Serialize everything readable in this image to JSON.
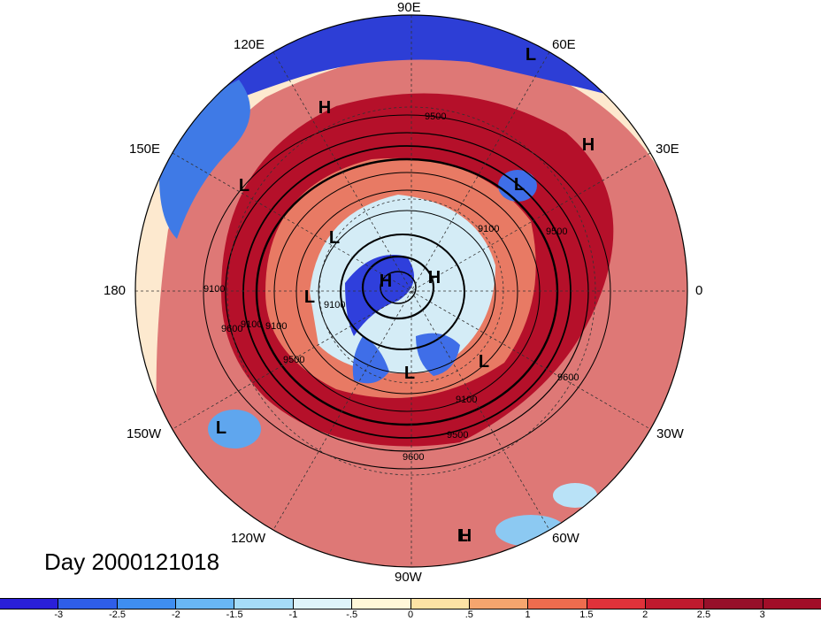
{
  "map": {
    "day_label": "Day 2000121018",
    "longitude_labels": [
      "90E",
      "60E",
      "30E",
      "0",
      "30W",
      "60W",
      "90W",
      "120W",
      "150W",
      "180",
      "150E",
      "120E"
    ],
    "contour_labels": [
      "9500",
      "9100",
      "9500",
      "9100",
      "9100",
      "9600",
      "9100",
      "9500",
      "9600",
      "9100",
      "9600",
      "9100",
      "9500"
    ],
    "pressure_centers": [
      "L",
      "H",
      "H",
      "L",
      "L",
      "L",
      "H",
      "H",
      "L",
      "L",
      "L",
      "L",
      "L",
      "H"
    ]
  },
  "colorbar": {
    "colors": [
      "#2a1fd9",
      "#2f5ee8",
      "#3f8ef0",
      "#69b7f5",
      "#a6dcf8",
      "#dff4fa",
      "#fff7d9",
      "#fde2a5",
      "#f5a56e",
      "#ee6c4e",
      "#e0323a",
      "#bf1a2e",
      "#96102a",
      "#a10e28"
    ],
    "tick_labels": [
      "-3",
      "-2.5",
      "-2",
      "-1.5",
      "-1",
      "-.5",
      "0",
      ".5",
      "1",
      "1.5",
      "2",
      "2.5",
      "3"
    ]
  }
}
